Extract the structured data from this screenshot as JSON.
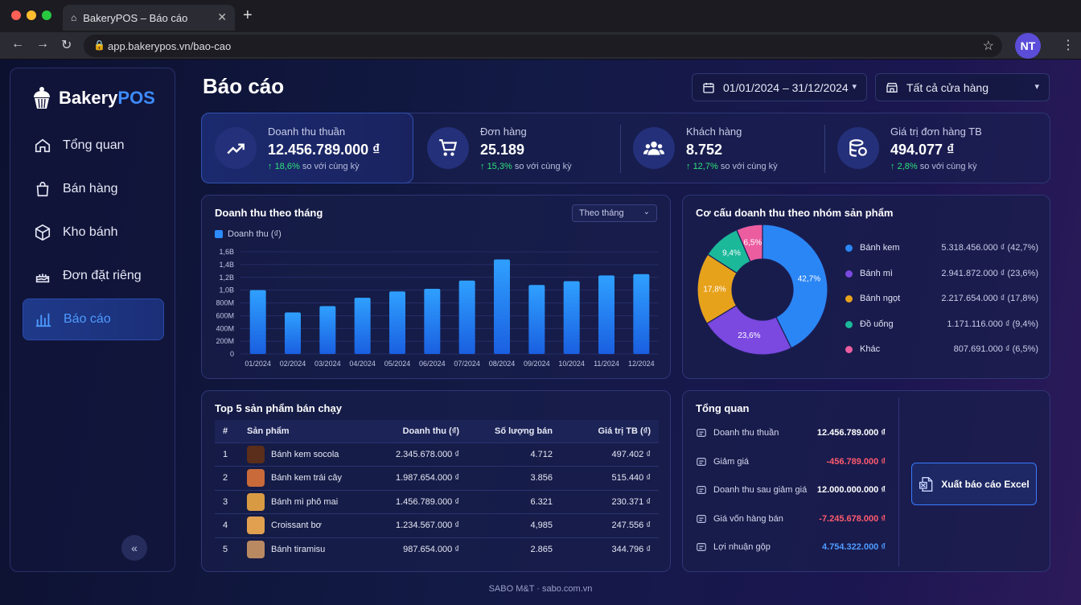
{
  "browser": {
    "tab_title": "BakeryPOS – Báo cáo",
    "url": "app.bakerypos.vn/bao-cao",
    "avatar_initials": "NT"
  },
  "sidebar": {
    "logo_main": "Bakery",
    "logo_accent": "POS",
    "items": [
      {
        "label": "Tổng quan",
        "icon": "home-icon"
      },
      {
        "label": "Bán hàng",
        "icon": "shopping-bag-icon"
      },
      {
        "label": "Kho bánh",
        "icon": "box-icon"
      },
      {
        "label": "Đơn đặt riêng",
        "icon": "cake-icon"
      },
      {
        "label": "Báo cáo",
        "icon": "bar-chart-icon",
        "active": true
      }
    ],
    "collapse_label": "«"
  },
  "header": {
    "title": "Báo cáo",
    "date_range": "01/01/2024 – 31/12/2024",
    "store_filter": "Tất cả cửa hàng"
  },
  "kpis": [
    {
      "label": "Doanh thu thuần",
      "value": "12.456.789.000 ₫",
      "change": "18,6%",
      "suffix": "so với cùng kỳ"
    },
    {
      "label": "Đơn hàng",
      "value": "25.189",
      "change": "15,3%",
      "suffix": "so với cùng kỳ"
    },
    {
      "label": "Khách hàng",
      "value": "8.752",
      "change": "12,7%",
      "suffix": "so với cùng kỳ"
    },
    {
      "label": "Giá trị đơn hàng TB",
      "value": "494.077 ₫",
      "change": "2,8%",
      "suffix": "so với cùng kỳ"
    }
  ],
  "revenue_chart": {
    "title": "Doanh thu theo tháng",
    "period_select": "Theo tháng"
  },
  "pie_chart": {
    "title": "Cơ cấu doanh thu theo nhóm sản phẩm"
  },
  "chart_data": [
    {
      "type": "bar",
      "title": "Doanh thu theo tháng",
      "categories": [
        "01/2024",
        "02/2024",
        "03/2024",
        "04/2024",
        "05/2024",
        "06/2024",
        "07/2024",
        "08/2024",
        "09/2024",
        "10/2024",
        "11/2024",
        "12/2024"
      ],
      "series": [
        {
          "name": "Doanh thu (₫)",
          "values": [
            1.0,
            0.65,
            0.75,
            0.88,
            0.98,
            1.02,
            1.15,
            1.48,
            1.08,
            1.14,
            1.23,
            1.25
          ]
        }
      ],
      "y_tick_labels": [
        "0",
        "200M",
        "400M",
        "600M",
        "800M",
        "1,0B",
        "1,2B",
        "1,4B",
        "1,6B"
      ],
      "ylim": [
        0,
        1.6
      ],
      "color": "#2c8bff"
    },
    {
      "type": "pie",
      "title": "Cơ cấu doanh thu theo nhóm sản phẩm",
      "slices": [
        {
          "name": "Bánh kem",
          "value": 42.7,
          "amount": "5.318.456.000 ₫ (42,7%)",
          "label": "42,7%",
          "color": "#2b86f5"
        },
        {
          "name": "Bánh mì",
          "value": 23.6,
          "amount": "2.941.872.000 ₫ (23,6%)",
          "label": "23,6%",
          "color": "#7b48e0"
        },
        {
          "name": "Bánh ngọt",
          "value": 17.8,
          "amount": "2.217.654.000 ₫ (17,8%)",
          "label": "17,8%",
          "color": "#e7a21c"
        },
        {
          "name": "Đồ uống",
          "value": 9.4,
          "amount": "1.171.116.000 ₫ (9,4%)",
          "label": "9,4%",
          "color": "#1bb89a"
        },
        {
          "name": "Khác",
          "value": 6.5,
          "amount": "807.691.000 ₫ (6,5%)",
          "label": "6,5%",
          "color": "#ec5da0"
        }
      ]
    }
  ],
  "top_products": {
    "title": "Top 5 sản phẩm bán chạy",
    "columns": [
      "#",
      "Sản phẩm",
      "Doanh thu (₫)",
      "Số lượng bán",
      "Giá trị TB (₫)"
    ],
    "rows": [
      {
        "rank": "1",
        "name": "Bánh kem socola",
        "revenue": "2.345.678.000 ₫",
        "qty": "4.712",
        "avg": "497.402 ₫",
        "thumb": "#5a2e1a"
      },
      {
        "rank": "2",
        "name": "Bánh kem trái cây",
        "revenue": "1.987.654.000 ₫",
        "qty": "3.856",
        "avg": "515.440 ₫",
        "thumb": "#c86a3a"
      },
      {
        "rank": "3",
        "name": "Bánh mì phô mai",
        "revenue": "1.456.789.000 ₫",
        "qty": "6.321",
        "avg": "230.371 ₫",
        "thumb": "#d99a44"
      },
      {
        "rank": "4",
        "name": "Croissant bơ",
        "revenue": "1.234.567.000 ₫",
        "qty": "4,985",
        "avg": "247.556 ₫",
        "thumb": "#e0a050"
      },
      {
        "rank": "5",
        "name": "Bánh tiramisu",
        "revenue": "987.654.000 ₫",
        "qty": "2.865",
        "avg": "344.796 ₫",
        "thumb": "#b98a62"
      }
    ]
  },
  "summary": {
    "title": "Tổng quan",
    "rows": [
      {
        "label": "Doanh thu thuần",
        "value": "12.456.789.000 ₫",
        "color": "#ffffff",
        "icon": "store-icon"
      },
      {
        "label": "Giảm giá",
        "value": "-456.789.000 ₫",
        "color": "#ff5a6e",
        "icon": "discount-icon"
      },
      {
        "label": "Doanh thu sau giảm giá",
        "value": "12.000.000.000 ₫",
        "color": "#ffffff",
        "icon": "wallet-icon"
      },
      {
        "label": "Giá vốn hàng bán",
        "value": "-7.245.678.000 ₫",
        "color": "#ff5a6e",
        "icon": "tag-icon"
      },
      {
        "label": "Lợi nhuận gộp",
        "value": "4.754.322.000 ₫",
        "color": "#4f9bff",
        "icon": "coin-icon"
      }
    ],
    "export_label": "Xuất báo cáo Excel"
  },
  "footer": "SABO M&T · sabo.com.vn"
}
